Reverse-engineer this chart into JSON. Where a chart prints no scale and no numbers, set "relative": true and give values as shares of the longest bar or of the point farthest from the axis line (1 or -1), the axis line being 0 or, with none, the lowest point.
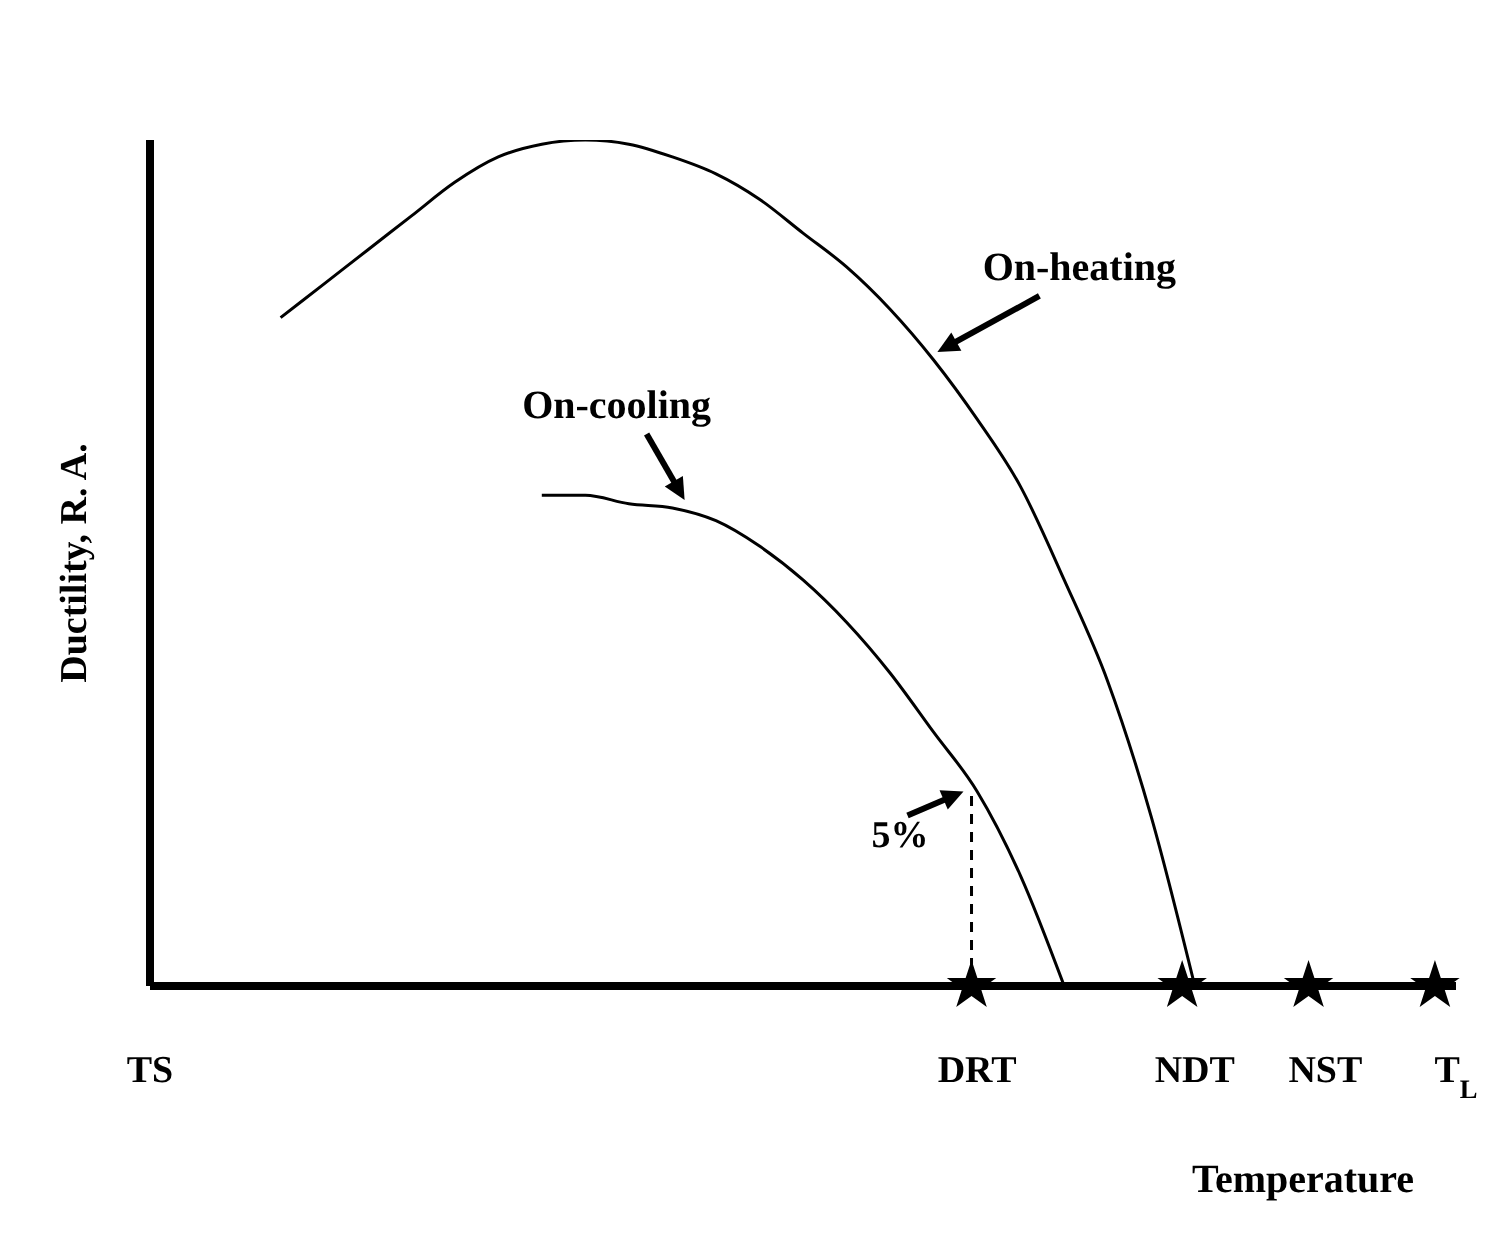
{
  "chart_data": {
    "type": "line",
    "relative": true,
    "xlabel": "Temperature",
    "ylabel": "Ductility, R. A.",
    "categories": [
      "TS",
      null,
      null,
      null,
      null,
      null,
      null,
      null,
      null,
      null,
      null,
      null,
      null,
      null,
      null,
      null,
      null,
      null,
      null,
      "DRT",
      null,
      null,
      null,
      null,
      "NDT",
      null,
      null,
      "NST",
      null,
      null,
      "T$_{L}$"
    ],
    "series": [
      {
        "name": "On-heating",
        "color": "#000000",
        "values": [
          null,
          null,
          null,
          0.79,
          0.83,
          0.87,
          0.91,
          0.95,
          0.98,
          0.995,
          1,
          0.995,
          0.98,
          0.96,
          0.93,
          0.89,
          0.85,
          0.8,
          0.74,
          0.67,
          0.59,
          0.48,
          0.36,
          0.2,
          0,
          null,
          null,
          null,
          null,
          null,
          null
        ]
      },
      {
        "name": "On-cooling",
        "color": "#000000",
        "values": [
          null,
          null,
          null,
          null,
          null,
          null,
          null,
          null,
          null,
          0.58,
          0.58,
          0.57,
          0.565,
          0.55,
          0.52,
          0.48,
          0.43,
          0.37,
          0.3,
          0.23,
          0.13,
          0,
          null,
          null,
          null,
          null,
          null,
          null,
          null,
          null,
          null
        ]
      }
    ],
    "annotations": [
      {
        "text": "5%",
        "x": "DRT",
        "y": 0.23
      }
    ],
    "legend": false,
    "grid": false,
    "marker": "none",
    "line_style": "solid"
  }
}
